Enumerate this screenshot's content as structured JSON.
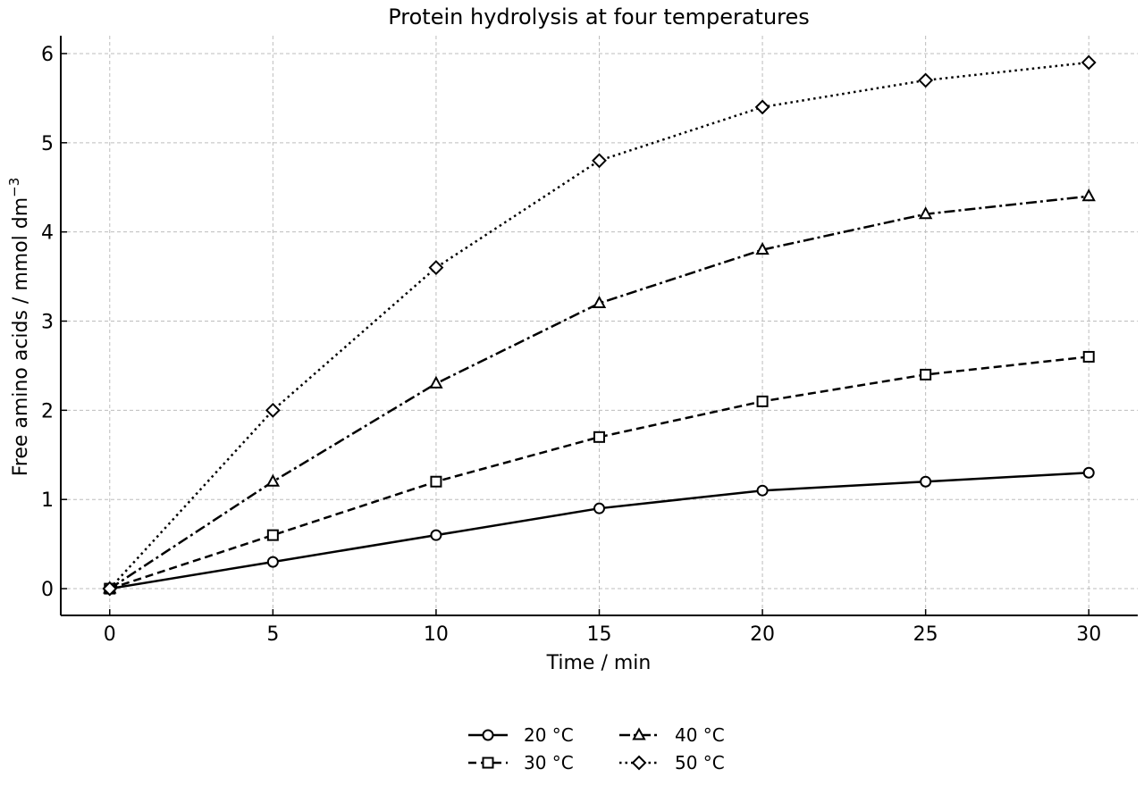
{
  "chart_data": {
    "type": "line",
    "title": "Protein hydrolysis at four temperatures",
    "xlabel": "Time / min",
    "ylabel_main": "Free amino acids / mmol dm",
    "ylabel_sup": "−3",
    "xlim": [
      -1.5,
      31.5
    ],
    "ylim": [
      -0.3,
      6.2
    ],
    "xticks": [
      0,
      5,
      10,
      15,
      20,
      25,
      30
    ],
    "yticks": [
      0,
      1,
      2,
      3,
      4,
      5,
      6
    ],
    "grid": true,
    "legend_placement": "bottom-center",
    "x": [
      0,
      5,
      10,
      15,
      20,
      25,
      30
    ],
    "series": [
      {
        "name": "20 °C",
        "marker": "circle",
        "dash": "solid",
        "values": [
          0,
          0.3,
          0.6,
          0.9,
          1.1,
          1.2,
          1.3
        ]
      },
      {
        "name": "30 °C",
        "marker": "square",
        "dash": "dashed",
        "values": [
          0,
          0.6,
          1.2,
          1.7,
          2.1,
          2.4,
          2.6
        ]
      },
      {
        "name": "40 °C",
        "marker": "triangle",
        "dash": "dashdot",
        "values": [
          0,
          1.2,
          2.3,
          3.2,
          3.8,
          4.2,
          4.4
        ]
      },
      {
        "name": "50 °C",
        "marker": "diamond",
        "dash": "dotted",
        "values": [
          0,
          2.0,
          3.6,
          4.8,
          5.4,
          5.7,
          5.9
        ]
      }
    ]
  }
}
